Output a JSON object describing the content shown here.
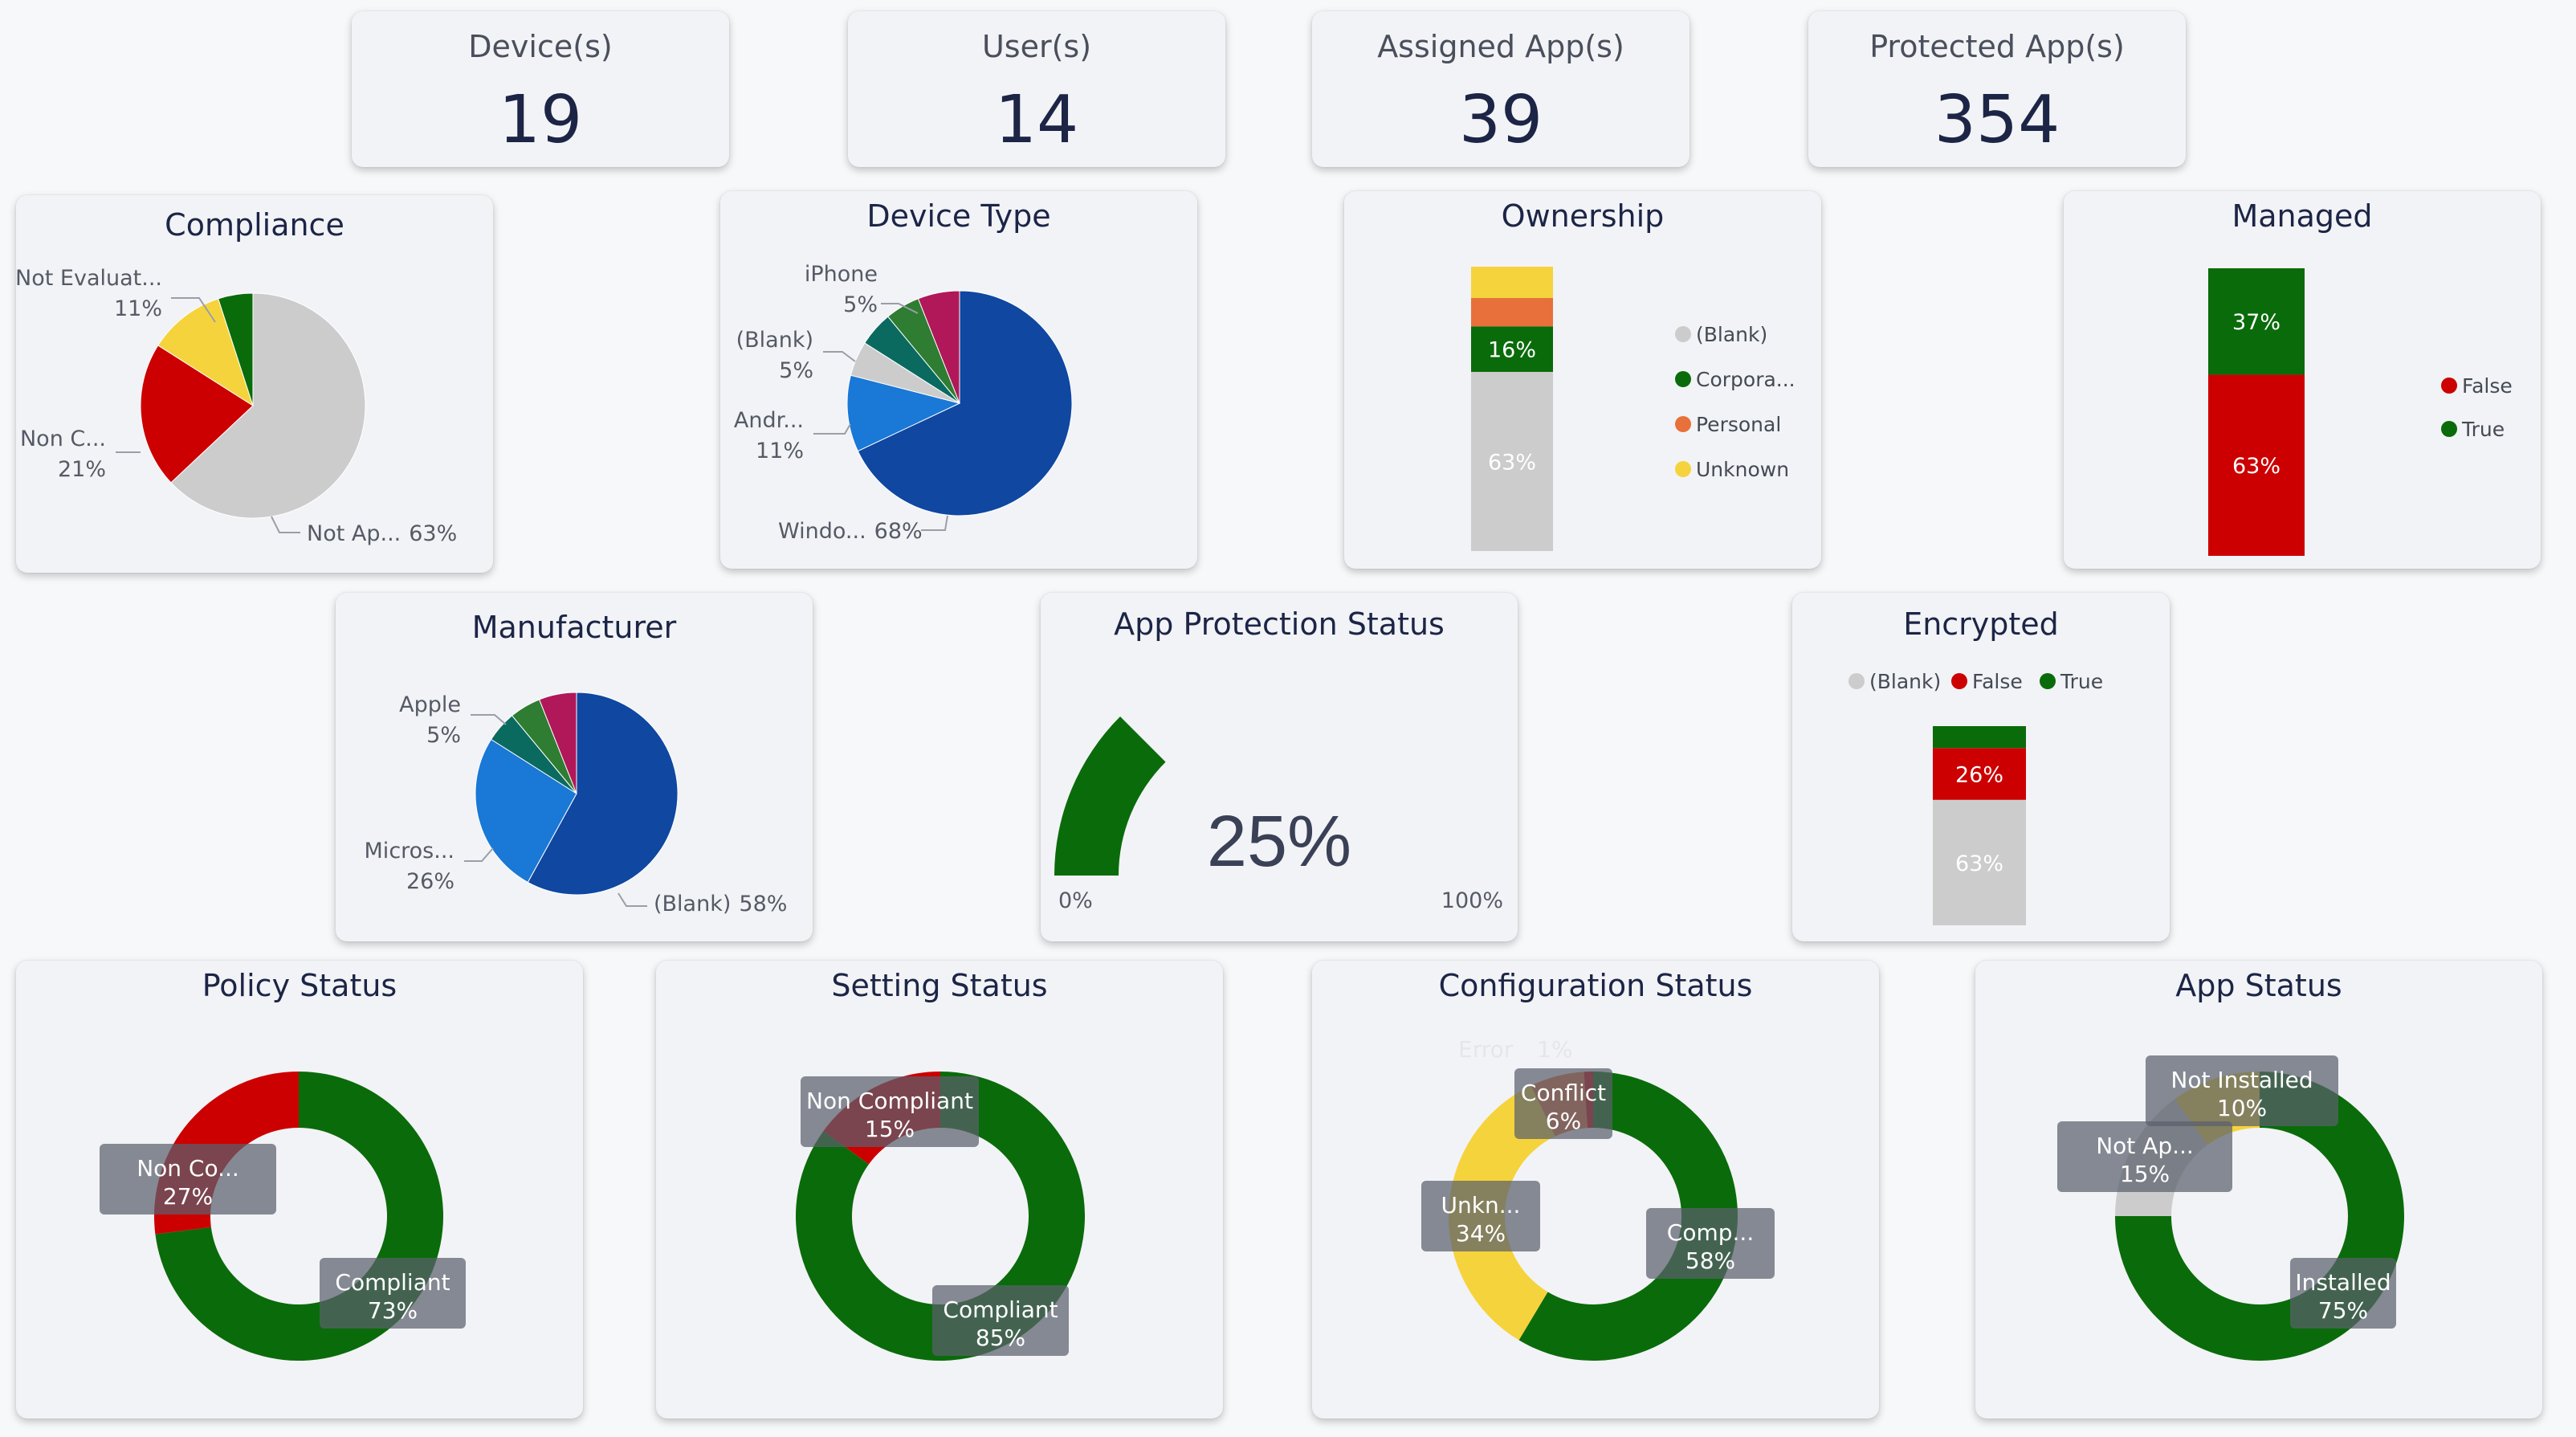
{
  "kpis": {
    "devices": {
      "label": "Device(s)",
      "value": "19"
    },
    "users": {
      "label": "User(s)",
      "value": "14"
    },
    "assigned_apps": {
      "label": "Assigned App(s)",
      "value": "39"
    },
    "protected_apps": {
      "label": "Protected App(s)",
      "value": "354"
    }
  },
  "colors": {
    "green": "#0a6b0a",
    "red": "#cc0000",
    "gray": "#cccccc",
    "yellow": "#f5d33c",
    "orange": "#e8703a",
    "blue_dark": "#0f47a1",
    "blue_light": "#1a78d6",
    "teal": "#0a6a60",
    "green_mid": "#2e7d32",
    "magenta": "#b01859"
  },
  "chart_data": [
    {
      "id": "compliance",
      "type": "pie",
      "title": "Compliance",
      "slices": [
        {
          "label": "Not Ap...",
          "value": 63,
          "pct": "63%",
          "color": "#cccccc"
        },
        {
          "label": "Non C...",
          "value": 21,
          "pct": "21%",
          "color": "#cc0000"
        },
        {
          "label": "Not Evaluat...",
          "value": 11,
          "pct": "11%",
          "color": "#f5d33c"
        },
        {
          "label": "",
          "value": 5,
          "pct": "",
          "color": "#0a6b0a"
        }
      ]
    },
    {
      "id": "device_type",
      "type": "pie",
      "title": "Device Type",
      "slices": [
        {
          "label": "Windo...",
          "value": 68,
          "pct": "68%",
          "color": "#0f47a1"
        },
        {
          "label": "Andr...",
          "value": 11,
          "pct": "11%",
          "color": "#1a78d6"
        },
        {
          "label": "(Blank)",
          "value": 5,
          "pct": "5%",
          "color": "#cccccc"
        },
        {
          "label": "",
          "value": 5,
          "pct": "",
          "color": "#0a6a60"
        },
        {
          "label": "iPhone",
          "value": 5,
          "pct": "5%",
          "color": "#2e7d32"
        },
        {
          "label": "",
          "value": 6,
          "pct": "",
          "color": "#b01859"
        }
      ]
    },
    {
      "id": "ownership",
      "type": "bar",
      "title": "Ownership",
      "stacked": true,
      "legend": "right",
      "segments": [
        {
          "name": "(Blank)",
          "value": 63,
          "label": "63%",
          "color": "#cccccc"
        },
        {
          "name": "Corpora...",
          "value": 16,
          "label": "16%",
          "color": "#0a6b0a"
        },
        {
          "name": "Personal",
          "value": 10,
          "label": "",
          "color": "#e8703a"
        },
        {
          "name": "Unknown",
          "value": 11,
          "label": "",
          "color": "#f5d33c"
        }
      ]
    },
    {
      "id": "managed",
      "type": "bar",
      "title": "Managed",
      "stacked": true,
      "legend": "right",
      "segments": [
        {
          "name": "False",
          "value": 63,
          "label": "63%",
          "color": "#cc0000"
        },
        {
          "name": "True",
          "value": 37,
          "label": "37%",
          "color": "#0a6b0a"
        }
      ]
    },
    {
      "id": "manufacturer",
      "type": "pie",
      "title": "Manufacturer",
      "slices": [
        {
          "label": "(Blank)",
          "value": 58,
          "pct": "58%",
          "color": "#0f47a1"
        },
        {
          "label": "Micros...",
          "value": 26,
          "pct": "26%",
          "color": "#1a78d6"
        },
        {
          "label": "",
          "value": 5,
          "pct": "",
          "color": "#0a6a60"
        },
        {
          "label": "Apple",
          "value": 5,
          "pct": "5%",
          "color": "#2e7d32"
        },
        {
          "label": "",
          "value": 6,
          "pct": "",
          "color": "#b01859"
        }
      ]
    },
    {
      "id": "app_protection",
      "type": "gauge",
      "title": "App Protection Status",
      "value": 25,
      "value_label": "25%",
      "min_label": "0%",
      "max_label": "100%"
    },
    {
      "id": "encrypted",
      "type": "bar",
      "title": "Encrypted",
      "stacked": true,
      "legend": "top",
      "segments": [
        {
          "name": "(Blank)",
          "value": 63,
          "label": "63%",
          "color": "#cccccc"
        },
        {
          "name": "False",
          "value": 26,
          "label": "26%",
          "color": "#cc0000"
        },
        {
          "name": "True",
          "value": 11,
          "label": "",
          "color": "#0a6b0a"
        }
      ]
    },
    {
      "id": "policy_status",
      "type": "pie",
      "donut": true,
      "title": "Policy Status",
      "slices": [
        {
          "label": "Compliant",
          "value": 73,
          "pct": "73%",
          "color": "#0a6b0a"
        },
        {
          "label": "Non Co...",
          "value": 27,
          "pct": "27%",
          "color": "#cc0000"
        }
      ]
    },
    {
      "id": "setting_status",
      "type": "pie",
      "donut": true,
      "title": "Setting Status",
      "slices": [
        {
          "label": "Compliant",
          "value": 85,
          "pct": "85%",
          "color": "#0a6b0a"
        },
        {
          "label": "Non Compliant",
          "value": 15,
          "pct": "15%",
          "color": "#cc0000"
        }
      ]
    },
    {
      "id": "configuration_status",
      "type": "pie",
      "donut": true,
      "title": "Configuration Status",
      "slices": [
        {
          "label": "Comp...",
          "value": 58,
          "pct": "58%",
          "color": "#0a6b0a"
        },
        {
          "label": "Unkn...",
          "value": 34,
          "pct": "34%",
          "color": "#f5d33c"
        },
        {
          "label": "Conflict",
          "value": 6,
          "pct": "6%",
          "color": "#e8703a"
        },
        {
          "label": "Error",
          "value": 1,
          "pct": "1%",
          "color": "#cc0000"
        }
      ]
    },
    {
      "id": "app_status",
      "type": "pie",
      "donut": true,
      "title": "App Status",
      "slices": [
        {
          "label": "Installed",
          "value": 75,
          "pct": "75%",
          "color": "#0a6b0a"
        },
        {
          "label": "Not Ap...",
          "value": 15,
          "pct": "15%",
          "color": "#cccccc"
        },
        {
          "label": "Not Installed",
          "value": 10,
          "pct": "10%",
          "color": "#f5d33c"
        }
      ]
    }
  ]
}
